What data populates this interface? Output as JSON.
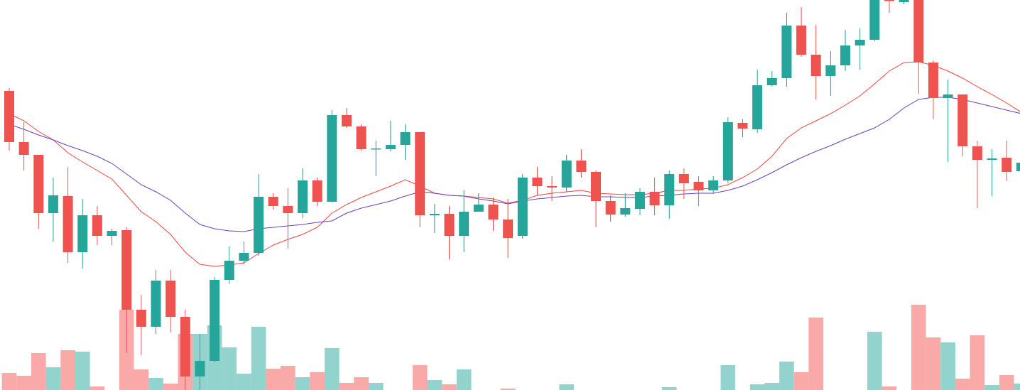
{
  "chart_data": {
    "type": "candlestick",
    "ylim": [
      0,
      549
    ],
    "up_color": "#26a69a",
    "down_color": "#ef5350",
    "open": [
      421,
      349,
      331,
      249,
      273,
      194,
      246,
      217,
      225,
      113,
      89,
      154,
      103,
      19,
      41,
      155,
      182,
      193,
      272,
      259,
      249,
      295,
      265,
      387,
      371,
      339,
      339,
      345,
      363,
      246,
      248,
      217,
      251,
      261,
      240,
      217,
      299,
      287,
      285,
      323,
      307,
      266,
      247,
      255,
      279,
      260,
      304,
      293,
      281,
      295,
      376,
      367,
      429,
      439,
      513,
      472,
      442,
      457,
      485,
      493,
      549,
      546,
      549,
      461,
      411,
      416,
      343,
      324,
      327,
      308
    ],
    "high": [
      425,
      377,
      331,
      299,
      314,
      269,
      259,
      227,
      229,
      134,
      169,
      169,
      113,
      79,
      159,
      202,
      209,
      304,
      277,
      284,
      312,
      299,
      394,
      397,
      374,
      351,
      379,
      374,
      363,
      262,
      259,
      281,
      277,
      271,
      269,
      304,
      314,
      301,
      331,
      339,
      309,
      274,
      277,
      284,
      299,
      309,
      312,
      301,
      301,
      384,
      381,
      451,
      449,
      531,
      539,
      514,
      477,
      507,
      509,
      549,
      549,
      549,
      549,
      464,
      437,
      416,
      351,
      339,
      351,
      329
    ],
    "low": [
      337,
      309,
      227,
      209,
      179,
      171,
      204,
      204,
      52,
      49,
      79,
      81,
      0,
      0,
      39,
      149,
      177,
      189,
      254,
      199,
      242,
      259,
      264,
      369,
      337,
      301,
      336,
      324,
      229,
      221,
      184,
      194,
      251,
      224,
      186,
      213,
      274,
      266,
      279,
      299,
      229,
      237,
      244,
      246,
      246,
      241,
      269,
      259,
      276,
      291,
      356,
      362,
      427,
      427,
      469,
      409,
      414,
      449,
      451,
      491,
      531,
      543,
      417,
      381,
      321,
      329,
      256,
      273,
      294,
      303
    ],
    "close": [
      349,
      331,
      249,
      274,
      194,
      246,
      217,
      224,
      113,
      89,
      154,
      103,
      19,
      41,
      155,
      182,
      193,
      272,
      259,
      249,
      295,
      265,
      387,
      371,
      339,
      340,
      345,
      363,
      246,
      248,
      217,
      251,
      261,
      240,
      214,
      299,
      287,
      285,
      323,
      307,
      266,
      247,
      256,
      279,
      260,
      304,
      291,
      281,
      295,
      377,
      368,
      429,
      439,
      513,
      472,
      442,
      457,
      485,
      493,
      549,
      548,
      549,
      461,
      411,
      416,
      343,
      324,
      326,
      307,
      320
    ],
    "volume": {
      "ylim": [
        0,
        549
      ],
      "up_color": "#92d3cd",
      "down_color": "#f8a9a8",
      "values": [
        24,
        20,
        52,
        32,
        56,
        54,
        5,
        0,
        113,
        29,
        17,
        9,
        79,
        79,
        91,
        60,
        23,
        89,
        30,
        34,
        18,
        25,
        59,
        10,
        18,
        10,
        0,
        0,
        35,
        14,
        8,
        29,
        0,
        0,
        2,
        0,
        0,
        0,
        8,
        0,
        0,
        0,
        0,
        0,
        0,
        4,
        0,
        0,
        0,
        35,
        0,
        8,
        10,
        40,
        25,
        102,
        0,
        0,
        0,
        82,
        5,
        0,
        120,
        74,
        67,
        16,
        77,
        7,
        21,
        9
      ]
    },
    "moving_averages": [
      {
        "color": "#f0453f",
        "values": [
          389,
          379,
          364,
          352,
          334,
          321,
          309,
          297,
          274,
          251,
          237,
          219,
          194,
          177,
          174,
          176,
          179,
          192,
          204,
          212,
          219,
          229,
          249,
          261,
          271,
          279,
          287,
          296,
          287,
          277,
          274,
          273,
          271,
          269,
          263,
          267,
          274,
          277,
          279,
          281,
          277,
          276,
          275,
          275,
          277,
          281,
          281,
          283,
          284,
          289,
          299,
          311,
          329,
          354,
          369,
          379,
          389,
          401,
          414,
          431,
          449,
          461,
          462,
          457,
          449,
          439,
          427,
          416,
          404,
          391
        ]
      },
      {
        "color": "#6a3fc1",
        "values": [
          374,
          367,
          359,
          352,
          344,
          337,
          329,
          319,
          304,
          289,
          279,
          267,
          249,
          233,
          227,
          224,
          223,
          227,
          229,
          231,
          233,
          236,
          238,
          249,
          256,
          261,
          266,
          273,
          279,
          277,
          274,
          273,
          269,
          266,
          262,
          266,
          269,
          271,
          273,
          274,
          272,
          272,
          271,
          271,
          273,
          274,
          276,
          277,
          277,
          281,
          287,
          296,
          306,
          317,
          327,
          336,
          344,
          353,
          361,
          369,
          381,
          397,
          409,
          412,
          412,
          409,
          404,
          399,
          394,
          389
        ]
      }
    ]
  }
}
